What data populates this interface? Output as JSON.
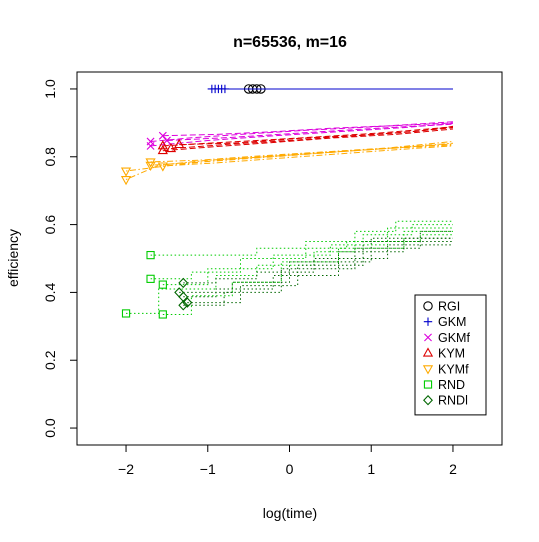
{
  "chart_data": {
    "type": "line",
    "title": "n=65536, m=16",
    "xlabel": "log(time)",
    "ylabel": "efficiency",
    "xlim": [
      -2.6,
      2.6
    ],
    "ylim": [
      -0.05,
      1.05
    ],
    "xticks": [
      -2,
      -1,
      0,
      1,
      2
    ],
    "xtick_labels": [
      "−2",
      "−1",
      "0",
      "1",
      "2"
    ],
    "yticks": [
      0.0,
      0.2,
      0.4,
      0.6,
      0.8,
      1.0
    ],
    "ytick_labels": [
      "0.0",
      "0.2",
      "0.4",
      "0.6",
      "0.8",
      "1.0"
    ],
    "grid": false,
    "legend_position": "bottom-right",
    "series": [
      {
        "name": "RGI",
        "color": "#000000",
        "marker": "circle",
        "line": "solid",
        "runs": [
          [
            [
              -0.5,
              1.0
            ],
            [
              2.0,
              1.0
            ]
          ],
          [
            [
              -0.45,
              1.0
            ],
            [
              2.0,
              1.0
            ]
          ],
          [
            [
              -0.4,
              1.0
            ],
            [
              2.0,
              1.0
            ]
          ],
          [
            [
              -0.35,
              1.0
            ],
            [
              2.0,
              1.0
            ]
          ]
        ]
      },
      {
        "name": "GKM",
        "color": "#0000cc",
        "marker": "plus",
        "line": "solid",
        "runs": [
          [
            [
              -0.95,
              1.0
            ],
            [
              2.0,
              1.0
            ]
          ],
          [
            [
              -0.91,
              1.0
            ],
            [
              2.0,
              1.0
            ]
          ],
          [
            [
              -0.87,
              1.0
            ],
            [
              2.0,
              1.0
            ]
          ],
          [
            [
              -0.83,
              1.0
            ],
            [
              2.0,
              1.0
            ]
          ],
          [
            [
              -0.79,
              1.0
            ],
            [
              2.0,
              1.0
            ]
          ]
        ]
      },
      {
        "name": "GKMf",
        "color": "#dd00dd",
        "marker": "x",
        "line": "dashed",
        "runs": [
          [
            [
              -1.7,
              0.845
            ],
            [
              -1.2,
              0.856
            ],
            [
              -0.6,
              0.866
            ],
            [
              0.2,
              0.878
            ],
            [
              1.0,
              0.888
            ],
            [
              2.0,
              0.903
            ]
          ],
          [
            [
              -1.7,
              0.832
            ],
            [
              -1.0,
              0.848
            ],
            [
              -0.3,
              0.86
            ],
            [
              0.6,
              0.874
            ],
            [
              1.4,
              0.886
            ],
            [
              2.0,
              0.898
            ]
          ],
          [
            [
              -1.55,
              0.862
            ],
            [
              -0.9,
              0.866
            ],
            [
              -0.2,
              0.874
            ],
            [
              0.5,
              0.884
            ],
            [
              1.3,
              0.892
            ],
            [
              2.0,
              0.9
            ]
          ],
          [
            [
              -1.5,
              0.848
            ],
            [
              -0.8,
              0.856
            ],
            [
              0.0,
              0.868
            ],
            [
              0.8,
              0.88
            ],
            [
              1.5,
              0.89
            ],
            [
              2.0,
              0.896
            ]
          ]
        ]
      },
      {
        "name": "KYM",
        "color": "#dd0000",
        "marker": "triangle-up",
        "line": "dashed",
        "runs": [
          [
            [
              -1.55,
              0.832
            ],
            [
              -1.0,
              0.84
            ],
            [
              -0.4,
              0.848
            ],
            [
              0.3,
              0.858
            ],
            [
              1.1,
              0.87
            ],
            [
              2.0,
              0.888
            ]
          ],
          [
            [
              -1.55,
              0.818
            ],
            [
              -0.9,
              0.83
            ],
            [
              -0.2,
              0.842
            ],
            [
              0.5,
              0.855
            ],
            [
              1.3,
              0.866
            ],
            [
              2.0,
              0.882
            ]
          ],
          [
            [
              -1.45,
              0.824
            ],
            [
              -0.8,
              0.836
            ],
            [
              0.0,
              0.848
            ],
            [
              0.7,
              0.86
            ],
            [
              1.4,
              0.872
            ],
            [
              2.0,
              0.886
            ]
          ],
          [
            [
              -1.35,
              0.836
            ],
            [
              -0.7,
              0.84
            ],
            [
              0.1,
              0.854
            ],
            [
              0.9,
              0.864
            ],
            [
              1.6,
              0.876
            ],
            [
              2.0,
              0.89
            ]
          ]
        ]
      },
      {
        "name": "KYMf",
        "color": "#ffaa00",
        "marker": "triangle-down",
        "line": "dotdash",
        "runs": [
          [
            [
              -2.0,
              0.733
            ],
            [
              -1.6,
              0.775
            ],
            [
              -1.0,
              0.79
            ],
            [
              -0.3,
              0.8
            ],
            [
              0.6,
              0.815
            ],
            [
              1.4,
              0.828
            ],
            [
              2.0,
              0.84
            ]
          ],
          [
            [
              -2.0,
              0.758
            ],
            [
              -1.4,
              0.776
            ],
            [
              -0.8,
              0.792
            ],
            [
              0.0,
              0.806
            ],
            [
              0.9,
              0.82
            ],
            [
              2.0,
              0.835
            ]
          ],
          [
            [
              -1.7,
              0.785
            ],
            [
              -1.1,
              0.79
            ],
            [
              -0.4,
              0.802
            ],
            [
              0.4,
              0.814
            ],
            [
              1.2,
              0.826
            ],
            [
              2.0,
              0.845
            ]
          ],
          [
            [
              -1.7,
              0.775
            ],
            [
              -1.0,
              0.786
            ],
            [
              -0.2,
              0.8
            ],
            [
              0.7,
              0.816
            ],
            [
              1.5,
              0.83
            ],
            [
              2.0,
              0.838
            ]
          ],
          [
            [
              -1.55,
              0.773
            ],
            [
              -0.9,
              0.782
            ],
            [
              -0.1,
              0.796
            ],
            [
              0.8,
              0.812
            ],
            [
              1.6,
              0.826
            ],
            [
              2.0,
              0.832
            ]
          ]
        ]
      },
      {
        "name": "RND",
        "color": "#00cc00",
        "marker": "square",
        "line": "dotted",
        "runs": [
          [
            [
              -1.7,
              0.51
            ],
            [
              -0.4,
              0.51
            ],
            [
              -0.4,
              0.53
            ],
            [
              0.7,
              0.53
            ],
            [
              0.7,
              0.55
            ],
            [
              1.6,
              0.55
            ],
            [
              1.6,
              0.57
            ],
            [
              2.0,
              0.57
            ]
          ],
          [
            [
              -2.0,
              0.338
            ],
            [
              -1.6,
              0.338
            ],
            [
              -1.6,
              0.41
            ],
            [
              -0.9,
              0.41
            ],
            [
              -0.9,
              0.45
            ],
            [
              -0.4,
              0.45
            ],
            [
              -0.4,
              0.48
            ],
            [
              0.3,
              0.48
            ],
            [
              0.3,
              0.52
            ],
            [
              0.8,
              0.52
            ],
            [
              0.8,
              0.58
            ],
            [
              1.3,
              0.58
            ],
            [
              1.3,
              0.61
            ],
            [
              2.0,
              0.61
            ]
          ],
          [
            [
              -1.7,
              0.44
            ],
            [
              -1.2,
              0.44
            ],
            [
              -1.2,
              0.46
            ],
            [
              -0.6,
              0.46
            ],
            [
              -0.6,
              0.5
            ],
            [
              0.2,
              0.5
            ],
            [
              0.2,
              0.55
            ],
            [
              0.9,
              0.55
            ],
            [
              0.9,
              0.57
            ],
            [
              1.5,
              0.57
            ],
            [
              1.5,
              0.6
            ],
            [
              2.0,
              0.6
            ]
          ],
          [
            [
              -1.55,
              0.423
            ],
            [
              -1.0,
              0.423
            ],
            [
              -1.0,
              0.47
            ],
            [
              -0.2,
              0.47
            ],
            [
              -0.2,
              0.51
            ],
            [
              0.5,
              0.51
            ],
            [
              0.5,
              0.54
            ],
            [
              1.2,
              0.54
            ],
            [
              1.2,
              0.59
            ],
            [
              2.0,
              0.59
            ]
          ],
          [
            [
              -1.55,
              0.335
            ],
            [
              -1.2,
              0.335
            ],
            [
              -1.2,
              0.39
            ],
            [
              -0.7,
              0.39
            ],
            [
              -0.7,
              0.43
            ],
            [
              -0.1,
              0.43
            ],
            [
              -0.1,
              0.49
            ],
            [
              0.6,
              0.49
            ],
            [
              0.6,
              0.53
            ],
            [
              1.4,
              0.53
            ],
            [
              1.4,
              0.58
            ],
            [
              2.0,
              0.58
            ]
          ]
        ]
      },
      {
        "name": "RNDl",
        "color": "#006600",
        "marker": "diamond",
        "line": "dotted",
        "runs": [
          [
            [
              -1.3,
              0.428
            ],
            [
              -0.9,
              0.428
            ],
            [
              -0.9,
              0.44
            ],
            [
              -0.4,
              0.44
            ],
            [
              -0.4,
              0.46
            ],
            [
              0.3,
              0.46
            ],
            [
              0.3,
              0.5
            ],
            [
              1.2,
              0.5
            ],
            [
              1.2,
              0.54
            ],
            [
              2.0,
              0.54
            ]
          ],
          [
            [
              -1.3,
              0.387
            ],
            [
              -0.9,
              0.387
            ],
            [
              -0.9,
              0.41
            ],
            [
              -0.2,
              0.41
            ],
            [
              -0.2,
              0.45
            ],
            [
              0.6,
              0.45
            ],
            [
              0.6,
              0.52
            ],
            [
              1.4,
              0.52
            ],
            [
              1.4,
              0.56
            ],
            [
              2.0,
              0.56
            ]
          ],
          [
            [
              -1.3,
              0.362
            ],
            [
              -0.8,
              0.362
            ],
            [
              -0.8,
              0.4
            ],
            [
              -0.1,
              0.4
            ],
            [
              -0.1,
              0.47
            ],
            [
              0.8,
              0.47
            ],
            [
              0.8,
              0.53
            ],
            [
              1.6,
              0.53
            ],
            [
              1.6,
              0.58
            ],
            [
              2.0,
              0.58
            ]
          ],
          [
            [
              -1.25,
              0.37
            ],
            [
              -0.6,
              0.37
            ],
            [
              -0.6,
              0.42
            ],
            [
              0.1,
              0.42
            ],
            [
              0.1,
              0.48
            ],
            [
              0.9,
              0.48
            ],
            [
              0.9,
              0.55
            ],
            [
              2.0,
              0.55
            ]
          ],
          [
            [
              -1.35,
              0.4
            ],
            [
              -0.7,
              0.4
            ],
            [
              -0.7,
              0.43
            ],
            [
              0.0,
              0.43
            ],
            [
              0.0,
              0.49
            ],
            [
              1.0,
              0.49
            ],
            [
              1.0,
              0.56
            ],
            [
              2.0,
              0.56
            ]
          ]
        ]
      }
    ]
  }
}
